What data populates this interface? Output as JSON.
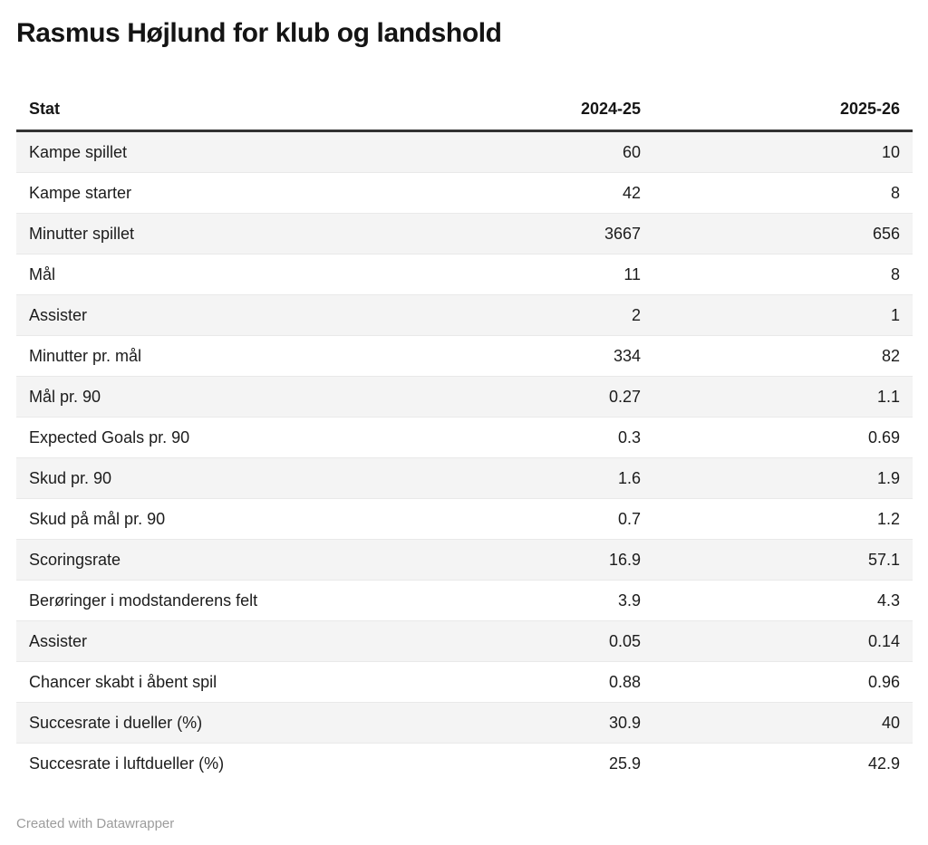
{
  "chart_data": {
    "type": "table",
    "title": "Rasmus Højlund for klub og landshold",
    "columns": [
      "Stat",
      "2024-25",
      "2025-26"
    ],
    "rows": [
      [
        "Kampe spillet",
        60,
        10
      ],
      [
        "Kampe starter",
        42,
        8
      ],
      [
        "Minutter spillet",
        3667,
        656
      ],
      [
        "Mål",
        11,
        8
      ],
      [
        "Assister",
        2,
        1
      ],
      [
        "Minutter pr. mål",
        334,
        82
      ],
      [
        "Mål pr. 90",
        0.27,
        1.1
      ],
      [
        "Expected Goals pr. 90",
        0.3,
        0.69
      ],
      [
        "Skud pr. 90",
        1.6,
        1.9
      ],
      [
        "Skud på mål pr. 90",
        0.7,
        1.2
      ],
      [
        "Scoringsrate",
        16.9,
        57.1
      ],
      [
        "Berøringer i modstanderens felt",
        3.9,
        4.3
      ],
      [
        "Assister",
        0.05,
        0.14
      ],
      [
        "Chancer skabt i åbent spil",
        0.88,
        0.96
      ],
      [
        "Succesrate i dueller (%)",
        30.9,
        40
      ],
      [
        "Succesrate i luftdueller (%)",
        25.9,
        42.9
      ]
    ],
    "layout": {
      "row_alt_background": "#f4f4f4",
      "header_rule_color": "#333333",
      "value_alignment": "right"
    }
  },
  "footer": {
    "credit": "Created with Datawrapper"
  }
}
